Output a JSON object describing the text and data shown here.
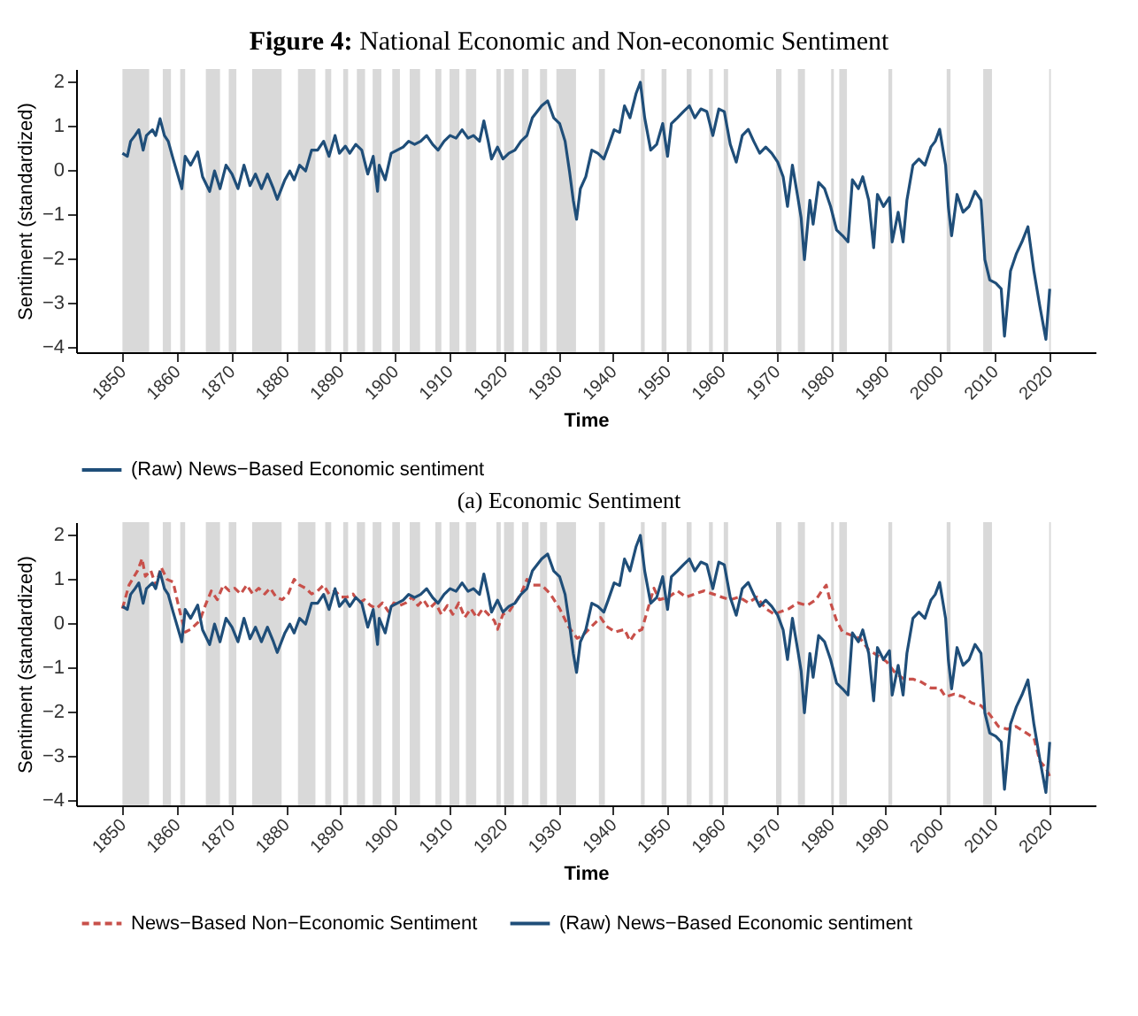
{
  "chart_data": [
    {
      "type": "line",
      "title": "Figure 4: National Economic and Non-economic Sentiment",
      "xlabel": "Time",
      "ylabel": "Sentiment (standardized)",
      "annotations": [
        "(a) Economic Sentiment"
      ],
      "xlim": [
        1841.5,
        2028.5
      ],
      "xticks": [
        1850,
        1860,
        1870,
        1880,
        1890,
        1900,
        1910,
        1920,
        1930,
        1940,
        1950,
        1960,
        1970,
        1980,
        1990,
        2000,
        2010,
        2020
      ],
      "ylim": [
        -4.12,
        2.27
      ],
      "yticks": [
        -4,
        -3,
        -2,
        -1,
        0,
        1,
        2
      ],
      "grid": false,
      "legend": "bottom",
      "bands": [
        {
          "axis": "x",
          "from": 1850,
          "to": 1854.9,
          "color": "#d9d9d9"
        },
        {
          "axis": "x",
          "from": 1857.4,
          "to": 1858.9,
          "color": "#d9d9d9"
        },
        {
          "axis": "x",
          "from": 1860.6,
          "to": 1861.5,
          "color": "#d9d9d9"
        },
        {
          "axis": "x",
          "from": 1865.3,
          "to": 1867.9,
          "color": "#d9d9d9"
        },
        {
          "axis": "x",
          "from": 1869.5,
          "to": 1870.9,
          "color": "#d9d9d9"
        },
        {
          "axis": "x",
          "from": 1873.8,
          "to": 1879.2,
          "color": "#d9d9d9"
        },
        {
          "axis": "x",
          "from": 1882.2,
          "to": 1885.4,
          "color": "#d9d9d9"
        },
        {
          "axis": "x",
          "from": 1887.2,
          "to": 1888.3,
          "color": "#d9d9d9"
        },
        {
          "axis": "x",
          "from": 1890.5,
          "to": 1891.4,
          "color": "#d9d9d9"
        },
        {
          "axis": "x",
          "from": 1893,
          "to": 1894.5,
          "color": "#d9d9d9"
        },
        {
          "axis": "x",
          "from": 1895.9,
          "to": 1897.5,
          "color": "#d9d9d9"
        },
        {
          "axis": "x",
          "from": 1899.5,
          "to": 1900.9,
          "color": "#d9d9d9"
        },
        {
          "axis": "x",
          "from": 1902.7,
          "to": 1904.6,
          "color": "#d9d9d9"
        },
        {
          "axis": "x",
          "from": 1907.4,
          "to": 1908.5,
          "color": "#d9d9d9"
        },
        {
          "axis": "x",
          "from": 1910,
          "to": 1911.8,
          "color": "#d9d9d9"
        },
        {
          "axis": "x",
          "from": 1913,
          "to": 1914.9,
          "color": "#d9d9d9"
        },
        {
          "axis": "x",
          "from": 1918.6,
          "to": 1919.4,
          "color": "#d9d9d9"
        },
        {
          "axis": "x",
          "from": 1920,
          "to": 1921.8,
          "color": "#d9d9d9"
        },
        {
          "axis": "x",
          "from": 1923.3,
          "to": 1924.5,
          "color": "#d9d9d9"
        },
        {
          "axis": "x",
          "from": 1926.6,
          "to": 1927.9,
          "color": "#d9d9d9"
        },
        {
          "axis": "x",
          "from": 1929.6,
          "to": 1933.2,
          "color": "#d9d9d9"
        },
        {
          "axis": "x",
          "from": 1937.4,
          "to": 1938.5,
          "color": "#d9d9d9"
        },
        {
          "axis": "x",
          "from": 1945.1,
          "to": 1945.8,
          "color": "#d9d9d9"
        },
        {
          "axis": "x",
          "from": 1948.9,
          "to": 1949.8,
          "color": "#d9d9d9"
        },
        {
          "axis": "x",
          "from": 1953.5,
          "to": 1954.4,
          "color": "#d9d9d9"
        },
        {
          "axis": "x",
          "from": 1957.6,
          "to": 1958.3,
          "color": "#d9d9d9"
        },
        {
          "axis": "x",
          "from": 1960.3,
          "to": 1961.1,
          "color": "#d9d9d9"
        },
        {
          "axis": "x",
          "from": 1969.9,
          "to": 1970.9,
          "color": "#d9d9d9"
        },
        {
          "axis": "x",
          "from": 1973.9,
          "to": 1975.2,
          "color": "#d9d9d9"
        },
        {
          "axis": "x",
          "from": 1980,
          "to": 1980.5,
          "color": "#d9d9d9"
        },
        {
          "axis": "x",
          "from": 1981.5,
          "to": 1982.9,
          "color": "#d9d9d9"
        },
        {
          "axis": "x",
          "from": 1990.5,
          "to": 1991.2,
          "color": "#d9d9d9"
        },
        {
          "axis": "x",
          "from": 2001.2,
          "to": 2001.9,
          "color": "#d9d9d9"
        },
        {
          "axis": "x",
          "from": 2007.9,
          "to": 2009.5,
          "color": "#d9d9d9"
        },
        {
          "axis": "x",
          "from": 2020,
          "to": 2020.3,
          "color": "#d9d9d9"
        }
      ],
      "series": [
        {
          "name": "(Raw) News−Based Economic sentiment",
          "color": "#1f4e79",
          "line_style": "solid",
          "x": [
            1850,
            1850.9,
            1851.5,
            1852.3,
            1853,
            1853.8,
            1854.4,
            1855.5,
            1856.1,
            1856.9,
            1857.7,
            1858.4,
            1859.3,
            1860.9,
            1861.5,
            1862.5,
            1863.8,
            1864.7,
            1866,
            1866.9,
            1867.9,
            1869,
            1870.1,
            1871.2,
            1872.3,
            1873.4,
            1874.4,
            1875.5,
            1876.6,
            1877.7,
            1878.4,
            1879.8,
            1880.7,
            1881.5,
            1882.5,
            1883.6,
            1884.7,
            1885.8,
            1886.9,
            1887.9,
            1889,
            1889.8,
            1890.9,
            1891.7,
            1892.8,
            1893.9,
            1895,
            1896,
            1896.8,
            1897.1,
            1898.2,
            1899.3,
            1900.4,
            1901.5,
            1902.5,
            1903.6,
            1904.7,
            1905.8,
            1906.9,
            1907.9,
            1909,
            1910.1,
            1911.2,
            1912.3,
            1913.4,
            1914.4,
            1915.5,
            1916.3,
            1917.1,
            1917.7,
            1918.8,
            1919.8,
            1920.9,
            1922,
            1923.1,
            1924.2,
            1925.2,
            1926.9,
            1928,
            1929.1,
            1930.2,
            1931.2,
            1932,
            1932.7,
            1933.3,
            1934,
            1935,
            1936.1,
            1937.2,
            1938.3,
            1939.1,
            1940.2,
            1941.2,
            1942.1,
            1943.1,
            1944.2,
            1945,
            1945.8,
            1946.9,
            1948,
            1949.1,
            1950,
            1950.7,
            1951.8,
            1952.9,
            1954,
            1955,
            1956.1,
            1957.2,
            1958.3,
            1959.4,
            1960.4,
            1961.5,
            1962.6,
            1963.7,
            1964.8,
            1965.8,
            1966.9,
            1968,
            1969.1,
            1970.2,
            1971.2,
            1972,
            1972.9,
            1973.9,
            1974.5,
            1975.1,
            1976.1,
            1976.7,
            1977.7,
            1978.8,
            1979.9,
            1981,
            1982.1,
            1983.1,
            1983.9,
            1985,
            1985.8,
            1986.9,
            1987.8,
            1988.5,
            1989.6,
            1990.7,
            1991.2,
            1992.3,
            1993.2,
            1993.9,
            1995,
            1996.1,
            1997.2,
            1998.3,
            1999.1,
            1999.9,
            2001,
            2001.5,
            2002.1,
            2003.1,
            2004.2,
            2005.3,
            2006.4,
            2007.5,
            2008.2,
            2009.1,
            2010.2,
            2011.2,
            2011.8,
            2012.9,
            2014,
            2015,
            2016.1,
            2017.2,
            2018.3,
            2019.4,
            2020.1
          ],
          "values": [
            0.37,
            0.3,
            0.64,
            0.77,
            0.9,
            0.44,
            0.77,
            0.9,
            0.77,
            1.15,
            0.77,
            0.64,
            0.24,
            -0.43,
            0.3,
            0.1,
            0.4,
            -0.16,
            -0.49,
            -0.03,
            -0.43,
            0.1,
            -0.1,
            -0.43,
            0.1,
            -0.36,
            -0.1,
            -0.43,
            -0.1,
            -0.43,
            -0.67,
            -0.23,
            -0.03,
            -0.23,
            0.1,
            -0.03,
            0.44,
            0.44,
            0.64,
            0.3,
            0.77,
            0.37,
            0.53,
            0.37,
            0.57,
            0.44,
            -0.1,
            0.3,
            -0.49,
            0.1,
            -0.23,
            0.37,
            0.44,
            0.51,
            0.64,
            0.57,
            0.64,
            0.77,
            0.57,
            0.44,
            0.64,
            0.77,
            0.71,
            0.9,
            0.71,
            0.77,
            0.64,
            1.1,
            0.64,
            0.24,
            0.51,
            0.24,
            0.37,
            0.44,
            0.64,
            0.77,
            1.17,
            1.44,
            1.55,
            1.17,
            1.04,
            0.64,
            -0.03,
            -0.69,
            -1.12,
            -0.43,
            -0.16,
            0.44,
            0.37,
            0.24,
            0.51,
            0.9,
            0.84,
            1.44,
            1.17,
            1.71,
            1.97,
            1.17,
            0.44,
            0.57,
            1.04,
            0.3,
            1.04,
            1.17,
            1.31,
            1.44,
            1.17,
            1.37,
            1.31,
            0.77,
            1.37,
            1.31,
            0.57,
            0.17,
            0.77,
            0.91,
            0.64,
            0.37,
            0.51,
            0.37,
            0.17,
            -0.16,
            -0.83,
            0.1,
            -0.63,
            -1.09,
            -2.03,
            -0.69,
            -1.23,
            -0.29,
            -0.43,
            -0.83,
            -1.36,
            -1.49,
            -1.63,
            -0.23,
            -0.43,
            -0.16,
            -0.69,
            -1.76,
            -0.56,
            -0.83,
            -0.63,
            -1.63,
            -0.96,
            -1.63,
            -0.69,
            0.1,
            0.24,
            0.1,
            0.51,
            0.64,
            0.91,
            0.1,
            -0.83,
            -1.49,
            -0.56,
            -0.96,
            -0.83,
            -0.49,
            -0.69,
            -2.03,
            -2.49,
            -2.56,
            -2.69,
            -3.76,
            -2.29,
            -1.89,
            -1.63,
            -1.29,
            -2.29,
            -3.09,
            -3.83,
            -2.69
          ]
        }
      ]
    },
    {
      "type": "line",
      "xlabel": "Time",
      "ylabel": "Sentiment (standardized)",
      "xlim": [
        1841.5,
        2028.5
      ],
      "xticks": [
        1850,
        1860,
        1870,
        1880,
        1890,
        1900,
        1910,
        1920,
        1930,
        1940,
        1950,
        1960,
        1970,
        1980,
        1990,
        2000,
        2010,
        2020
      ],
      "ylim": [
        -4.12,
        2.27
      ],
      "yticks": [
        -4,
        -3,
        -2,
        -1,
        0,
        1,
        2
      ],
      "grid": false,
      "legend": "bottom",
      "bands": [
        {
          "axis": "x",
          "from": 1850,
          "to": 1854.9,
          "color": "#d9d9d9"
        },
        {
          "axis": "x",
          "from": 1857.4,
          "to": 1858.9,
          "color": "#d9d9d9"
        },
        {
          "axis": "x",
          "from": 1860.6,
          "to": 1861.5,
          "color": "#d9d9d9"
        },
        {
          "axis": "x",
          "from": 1865.3,
          "to": 1867.9,
          "color": "#d9d9d9"
        },
        {
          "axis": "x",
          "from": 1869.5,
          "to": 1870.9,
          "color": "#d9d9d9"
        },
        {
          "axis": "x",
          "from": 1873.8,
          "to": 1879.2,
          "color": "#d9d9d9"
        },
        {
          "axis": "x",
          "from": 1882.2,
          "to": 1885.4,
          "color": "#d9d9d9"
        },
        {
          "axis": "x",
          "from": 1887.2,
          "to": 1888.3,
          "color": "#d9d9d9"
        },
        {
          "axis": "x",
          "from": 1890.5,
          "to": 1891.4,
          "color": "#d9d9d9"
        },
        {
          "axis": "x",
          "from": 1893,
          "to": 1894.5,
          "color": "#d9d9d9"
        },
        {
          "axis": "x",
          "from": 1895.9,
          "to": 1897.5,
          "color": "#d9d9d9"
        },
        {
          "axis": "x",
          "from": 1899.5,
          "to": 1900.9,
          "color": "#d9d9d9"
        },
        {
          "axis": "x",
          "from": 1902.7,
          "to": 1904.6,
          "color": "#d9d9d9"
        },
        {
          "axis": "x",
          "from": 1907.4,
          "to": 1908.5,
          "color": "#d9d9d9"
        },
        {
          "axis": "x",
          "from": 1910,
          "to": 1911.8,
          "color": "#d9d9d9"
        },
        {
          "axis": "x",
          "from": 1913,
          "to": 1914.9,
          "color": "#d9d9d9"
        },
        {
          "axis": "x",
          "from": 1918.6,
          "to": 1919.4,
          "color": "#d9d9d9"
        },
        {
          "axis": "x",
          "from": 1920,
          "to": 1921.8,
          "color": "#d9d9d9"
        },
        {
          "axis": "x",
          "from": 1923.3,
          "to": 1924.5,
          "color": "#d9d9d9"
        },
        {
          "axis": "x",
          "from": 1926.6,
          "to": 1927.9,
          "color": "#d9d9d9"
        },
        {
          "axis": "x",
          "from": 1929.6,
          "to": 1933.2,
          "color": "#d9d9d9"
        },
        {
          "axis": "x",
          "from": 1937.4,
          "to": 1938.5,
          "color": "#d9d9d9"
        },
        {
          "axis": "x",
          "from": 1945.1,
          "to": 1945.8,
          "color": "#d9d9d9"
        },
        {
          "axis": "x",
          "from": 1948.9,
          "to": 1949.8,
          "color": "#d9d9d9"
        },
        {
          "axis": "x",
          "from": 1953.5,
          "to": 1954.4,
          "color": "#d9d9d9"
        },
        {
          "axis": "x",
          "from": 1957.6,
          "to": 1958.3,
          "color": "#d9d9d9"
        },
        {
          "axis": "x",
          "from": 1960.3,
          "to": 1961.1,
          "color": "#d9d9d9"
        },
        {
          "axis": "x",
          "from": 1969.9,
          "to": 1970.9,
          "color": "#d9d9d9"
        },
        {
          "axis": "x",
          "from": 1973.9,
          "to": 1975.2,
          "color": "#d9d9d9"
        },
        {
          "axis": "x",
          "from": 1980,
          "to": 1980.5,
          "color": "#d9d9d9"
        },
        {
          "axis": "x",
          "from": 1981.5,
          "to": 1982.9,
          "color": "#d9d9d9"
        },
        {
          "axis": "x",
          "from": 1990.5,
          "to": 1991.2,
          "color": "#d9d9d9"
        },
        {
          "axis": "x",
          "from": 2001.2,
          "to": 2001.9,
          "color": "#d9d9d9"
        },
        {
          "axis": "x",
          "from": 2007.9,
          "to": 2009.5,
          "color": "#d9d9d9"
        },
        {
          "axis": "x",
          "from": 2020,
          "to": 2020.3,
          "color": "#d9d9d9"
        }
      ],
      "series": [
        {
          "name": "News−Based Non−Economic Sentiment",
          "color": "#c8504a",
          "line_style": "dashed",
          "x": [
            1850,
            1851.2,
            1852.8,
            1853.6,
            1854.2,
            1855.2,
            1856.1,
            1857.1,
            1858.2,
            1859.3,
            1860.4,
            1861.5,
            1862.5,
            1864.2,
            1865.2,
            1866.3,
            1867.4,
            1868.5,
            1869.6,
            1870.6,
            1871.7,
            1872.8,
            1873.9,
            1875,
            1876.1,
            1877.1,
            1878.2,
            1879.3,
            1880.4,
            1881.5,
            1882.5,
            1883.6,
            1884.7,
            1885.8,
            1886.9,
            1887.9,
            1889,
            1890.1,
            1891.2,
            1892.3,
            1893.4,
            1894.4,
            1895.5,
            1896.6,
            1897.7,
            1898.8,
            1899.8,
            1900.9,
            1902,
            1903.1,
            1904.2,
            1905.2,
            1906.3,
            1907.4,
            1908.5,
            1909.6,
            1910.6,
            1911.7,
            1912.8,
            1913.9,
            1915,
            1916.1,
            1917.1,
            1918.2,
            1918.8,
            1919.8,
            1920.9,
            1922,
            1923.1,
            1924.2,
            1925.2,
            1926.9,
            1928.5,
            1930.2,
            1931.8,
            1933.4,
            1934.5,
            1936.1,
            1937.7,
            1938.8,
            1940.4,
            1942.1,
            1943.1,
            1944.2,
            1945.3,
            1946.4,
            1947.5,
            1948.5,
            1950.2,
            1951.8,
            1953.4,
            1955,
            1956.7,
            1958.3,
            1959.9,
            1961.5,
            1963.1,
            1964.8,
            1966.4,
            1968,
            1969.6,
            1970.7,
            1972.3,
            1973.9,
            1975.6,
            1977.2,
            1978.3,
            1979.1,
            1979.9,
            1981,
            1982.1,
            1983.7,
            1985.3,
            1986.9,
            1988.5,
            1990.2,
            1991.8,
            1993.4,
            1995,
            1996.6,
            1998.3,
            1999.9,
            2001,
            2002.6,
            2004.2,
            2005.8,
            2007.5,
            2009.1,
            2010.7,
            2012.3,
            2013.9,
            2015.6,
            2017.2,
            2018.3,
            2019.4,
            2020.1
          ],
          "values": [
            0.32,
            0.85,
            1.18,
            1.45,
            1.05,
            1.18,
            0.85,
            1.25,
            0.98,
            0.92,
            0.32,
            -0.21,
            -0.15,
            0.05,
            0.39,
            0.72,
            0.52,
            0.85,
            0.72,
            0.78,
            0.65,
            0.85,
            0.65,
            0.78,
            0.65,
            0.78,
            0.58,
            0.52,
            0.65,
            0.98,
            0.85,
            0.78,
            0.65,
            0.72,
            0.85,
            0.65,
            0.72,
            0.58,
            0.58,
            0.65,
            0.45,
            0.52,
            0.39,
            0.32,
            0.45,
            0.25,
            0.45,
            0.39,
            0.45,
            0.58,
            0.39,
            0.52,
            0.32,
            0.45,
            0.19,
            0.39,
            0.19,
            0.45,
            0.12,
            0.32,
            0.12,
            0.32,
            0.19,
            0.05,
            -0.15,
            0.19,
            0.25,
            0.45,
            0.65,
            0.98,
            0.85,
            0.85,
            0.65,
            0.32,
            -0.08,
            -0.35,
            -0.28,
            -0.08,
            0.12,
            -0.08,
            -0.21,
            -0.15,
            -0.41,
            -0.21,
            -0.15,
            0.32,
            0.78,
            0.52,
            0.58,
            0.72,
            0.58,
            0.65,
            0.72,
            0.65,
            0.58,
            0.52,
            0.58,
            0.45,
            0.58,
            0.32,
            0.19,
            0.25,
            0.32,
            0.45,
            0.39,
            0.52,
            0.72,
            0.85,
            0.45,
            0.05,
            -0.21,
            -0.28,
            -0.35,
            -0.61,
            -0.74,
            -0.88,
            -1.14,
            -1.27,
            -1.27,
            -1.34,
            -1.47,
            -1.47,
            -1.67,
            -1.61,
            -1.67,
            -1.81,
            -1.87,
            -2.07,
            -2.34,
            -2.4,
            -2.34,
            -2.47,
            -2.6,
            -3.13,
            -3.27,
            -3.47
          ]
        },
        {
          "name": "(Raw) News−Based Economic sentiment",
          "color": "#1f4e79",
          "line_style": "solid",
          "x": [
            1850,
            1850.9,
            1851.5,
            1852.3,
            1853,
            1853.8,
            1854.4,
            1855.5,
            1856.1,
            1856.9,
            1857.7,
            1858.4,
            1859.3,
            1860.9,
            1861.5,
            1862.5,
            1863.8,
            1864.7,
            1866,
            1866.9,
            1867.9,
            1869,
            1870.1,
            1871.2,
            1872.3,
            1873.4,
            1874.4,
            1875.5,
            1876.6,
            1877.7,
            1878.4,
            1879.8,
            1880.7,
            1881.5,
            1882.5,
            1883.6,
            1884.7,
            1885.8,
            1886.9,
            1887.9,
            1889,
            1889.8,
            1890.9,
            1891.7,
            1892.8,
            1893.9,
            1895,
            1896,
            1896.8,
            1897.1,
            1898.2,
            1899.3,
            1900.4,
            1901.5,
            1902.5,
            1903.6,
            1904.7,
            1905.8,
            1906.9,
            1907.9,
            1909,
            1910.1,
            1911.2,
            1912.3,
            1913.4,
            1914.4,
            1915.5,
            1916.3,
            1917.1,
            1917.7,
            1918.8,
            1919.8,
            1920.9,
            1922,
            1923.1,
            1924.2,
            1925.2,
            1926.9,
            1928,
            1929.1,
            1930.2,
            1931.2,
            1932,
            1932.7,
            1933.3,
            1934,
            1935,
            1936.1,
            1937.2,
            1938.3,
            1939.1,
            1940.2,
            1941.2,
            1942.1,
            1943.1,
            1944.2,
            1945,
            1945.8,
            1946.9,
            1948,
            1949.1,
            1950,
            1950.7,
            1951.8,
            1952.9,
            1954,
            1955,
            1956.1,
            1957.2,
            1958.3,
            1959.4,
            1960.4,
            1961.5,
            1962.6,
            1963.7,
            1964.8,
            1965.8,
            1966.9,
            1968,
            1969.1,
            1970.2,
            1971.2,
            1972,
            1972.9,
            1973.9,
            1974.5,
            1975.1,
            1976.1,
            1976.7,
            1977.7,
            1978.8,
            1979.9,
            1981,
            1982.1,
            1983.1,
            1983.9,
            1985,
            1985.8,
            1986.9,
            1987.8,
            1988.5,
            1989.6,
            1990.7,
            1991.2,
            1992.3,
            1993.2,
            1993.9,
            1995,
            1996.1,
            1997.2,
            1998.3,
            1999.1,
            1999.9,
            2001,
            2001.5,
            2002.1,
            2003.1,
            2004.2,
            2005.3,
            2006.4,
            2007.5,
            2008.2,
            2009.1,
            2010.2,
            2011.2,
            2011.8,
            2012.9,
            2014,
            2015,
            2016.1,
            2017.2,
            2018.3,
            2019.4,
            2020.1
          ],
          "values": [
            0.37,
            0.3,
            0.64,
            0.77,
            0.9,
            0.44,
            0.77,
            0.9,
            0.77,
            1.15,
            0.77,
            0.64,
            0.24,
            -0.43,
            0.3,
            0.1,
            0.4,
            -0.16,
            -0.49,
            -0.03,
            -0.43,
            0.1,
            -0.1,
            -0.43,
            0.1,
            -0.36,
            -0.1,
            -0.43,
            -0.1,
            -0.43,
            -0.67,
            -0.23,
            -0.03,
            -0.23,
            0.1,
            -0.03,
            0.44,
            0.44,
            0.64,
            0.3,
            0.77,
            0.37,
            0.53,
            0.37,
            0.57,
            0.44,
            -0.1,
            0.3,
            -0.49,
            0.1,
            -0.23,
            0.37,
            0.44,
            0.51,
            0.64,
            0.57,
            0.64,
            0.77,
            0.57,
            0.44,
            0.64,
            0.77,
            0.71,
            0.9,
            0.71,
            0.77,
            0.64,
            1.1,
            0.64,
            0.24,
            0.51,
            0.24,
            0.37,
            0.44,
            0.64,
            0.77,
            1.17,
            1.44,
            1.55,
            1.17,
            1.04,
            0.64,
            -0.03,
            -0.69,
            -1.12,
            -0.43,
            -0.16,
            0.44,
            0.37,
            0.24,
            0.51,
            0.9,
            0.84,
            1.44,
            1.17,
            1.71,
            1.97,
            1.17,
            0.44,
            0.57,
            1.04,
            0.3,
            1.04,
            1.17,
            1.31,
            1.44,
            1.17,
            1.37,
            1.31,
            0.77,
            1.37,
            1.31,
            0.57,
            0.17,
            0.77,
            0.91,
            0.64,
            0.37,
            0.51,
            0.37,
            0.17,
            -0.16,
            -0.83,
            0.1,
            -0.63,
            -1.09,
            -2.03,
            -0.69,
            -1.23,
            -0.29,
            -0.43,
            -0.83,
            -1.36,
            -1.49,
            -1.63,
            -0.23,
            -0.43,
            -0.16,
            -0.69,
            -1.76,
            -0.56,
            -0.83,
            -0.63,
            -1.63,
            -0.96,
            -1.63,
            -0.69,
            0.1,
            0.24,
            0.1,
            0.51,
            0.64,
            0.91,
            0.1,
            -0.83,
            -1.49,
            -0.56,
            -0.96,
            -0.83,
            -0.49,
            -0.69,
            -2.03,
            -2.49,
            -2.56,
            -2.69,
            -3.76,
            -2.29,
            -1.89,
            -1.63,
            -1.29,
            -2.29,
            -3.09,
            -3.83,
            -2.69
          ]
        }
      ]
    }
  ]
}
